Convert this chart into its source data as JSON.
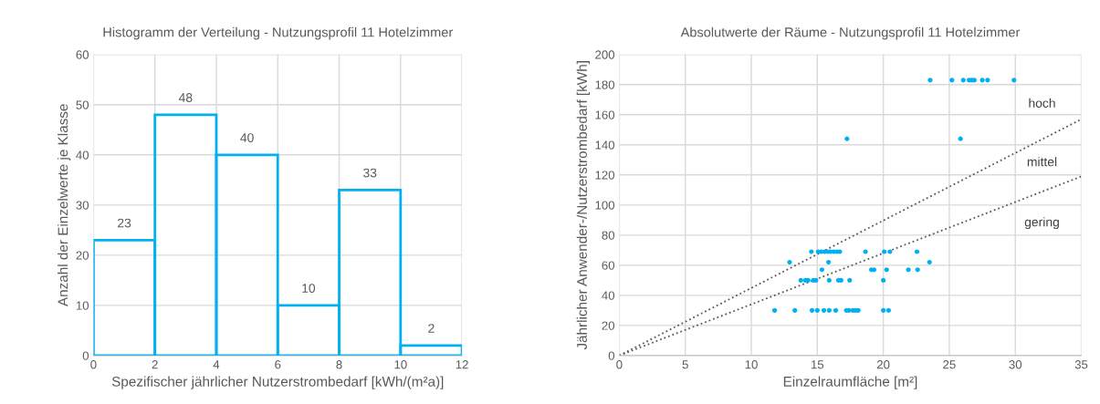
{
  "chart_data": [
    {
      "type": "histogram",
      "title": "Histogramm der Verteilung - Nutzungsprofil 11 Hotelzimmer",
      "xlabel": "Spezifischer jährlicher Nutzerstrombedarf [kWh/(m²a)]",
      "ylabel": "Anzahl der Einzelwerte je Klasse",
      "bins": [
        0,
        2,
        4,
        6,
        8,
        10,
        12
      ],
      "values": [
        23,
        48,
        40,
        10,
        33,
        2
      ],
      "color": "#00b0f0",
      "data_labels": true,
      "xlim": [
        0,
        12
      ],
      "xticks": [
        0,
        2,
        4,
        6,
        8,
        10,
        12
      ],
      "ylim": [
        0,
        60
      ],
      "yticks": [
        0,
        10,
        20,
        30,
        40,
        50,
        60
      ],
      "grid": true,
      "legend": false
    },
    {
      "type": "scatter",
      "title": "Absolutwerte der Räume - Nutzungsprofil 11 Hotelzimmer",
      "xlabel": "Einzelraumfläche [m²]",
      "ylabel": "Jährlicher Anwender-/Nutzerstrombedarf [kWh]",
      "xlim": [
        0,
        35
      ],
      "xticks": [
        0,
        5,
        10,
        15,
        20,
        25,
        30,
        35
      ],
      "ylim": [
        0,
        200
      ],
      "yticks": [
        0,
        20,
        40,
        60,
        80,
        100,
        120,
        140,
        160,
        180,
        200
      ],
      "grid": true,
      "legend": false,
      "series": [
        {
          "type": "scatter",
          "color": "#00b0f0",
          "marker": "circle",
          "x": [
            23.55,
            25.2,
            26.06,
            26.5,
            26.7,
            26.9,
            27.5,
            27.9,
            29.9,
            17.25,
            25.85,
            14.55,
            15.07,
            15.3,
            15.55,
            15.8,
            16.0,
            16.25,
            16.5,
            16.7,
            18.65,
            20.07,
            20.5,
            22.55,
            12.9,
            15.85,
            23.5,
            15.35,
            19.1,
            19.3,
            20.25,
            21.9,
            22.6,
            13.75,
            14.1,
            14.3,
            14.7,
            14.9,
            15.9,
            16.6,
            16.8,
            17.45,
            20.0,
            11.77,
            13.3,
            14.6,
            15.0,
            15.5,
            15.9,
            16.4,
            17.2,
            17.4,
            17.7,
            17.9,
            18.1,
            20.0,
            20.4
          ],
          "values": [
            183,
            183,
            183,
            183,
            183,
            183,
            183,
            183,
            183,
            144,
            144,
            69,
            69,
            69,
            69,
            69,
            69,
            69,
            69,
            69,
            69,
            69,
            69,
            69,
            62,
            62,
            62,
            57,
            57,
            57,
            57,
            57,
            57,
            50,
            50,
            50,
            50,
            50,
            50,
            50,
            50,
            50,
            50,
            30,
            30,
            30,
            30,
            30,
            30,
            30,
            30,
            30,
            30,
            30,
            30,
            30,
            30
          ]
        },
        {
          "type": "line",
          "color": "#595959",
          "line_style": "dotted",
          "marker": "none",
          "x": [
            0,
            35
          ],
          "values": [
            0,
            157
          ]
        },
        {
          "type": "line",
          "color": "#595959",
          "line_style": "dotted",
          "marker": "none",
          "x": [
            0,
            35
          ],
          "values": [
            0,
            119
          ]
        }
      ],
      "annotations": [
        "hoch",
        "mittel",
        "gering"
      ]
    }
  ]
}
